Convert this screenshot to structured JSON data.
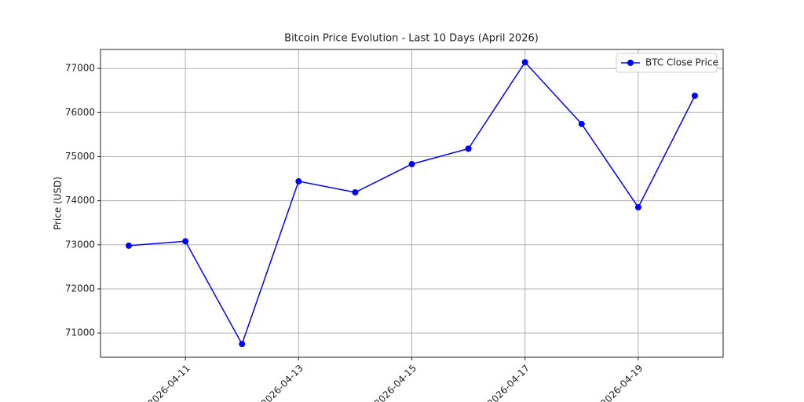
{
  "chart_data": {
    "type": "line",
    "title": "Bitcoin Price Evolution - Last 10 Days (April 2026)",
    "ylabel": "Price (USD)",
    "x": [
      "2026-04-10",
      "2026-04-11",
      "2026-04-12",
      "2026-04-13",
      "2026-04-14",
      "2026-04-15",
      "2026-04-16",
      "2026-04-17",
      "2026-04-18",
      "2026-04-19",
      "2026-04-20"
    ],
    "series": [
      {
        "name": "BTC Close Price",
        "color": "#0000ff",
        "values": [
          72980,
          73080,
          70750,
          74440,
          74190,
          74830,
          75180,
          77140,
          75740,
          73850,
          76380
        ]
      }
    ],
    "xticks": [
      "2026-04-11",
      "2026-04-13",
      "2026-04-15",
      "2026-04-17",
      "2026-04-19"
    ],
    "ylim": [
      70450,
      77430
    ],
    "yticks": [
      71000,
      72000,
      73000,
      74000,
      75000,
      76000,
      77000
    ],
    "grid": true,
    "legend": "upper right"
  }
}
